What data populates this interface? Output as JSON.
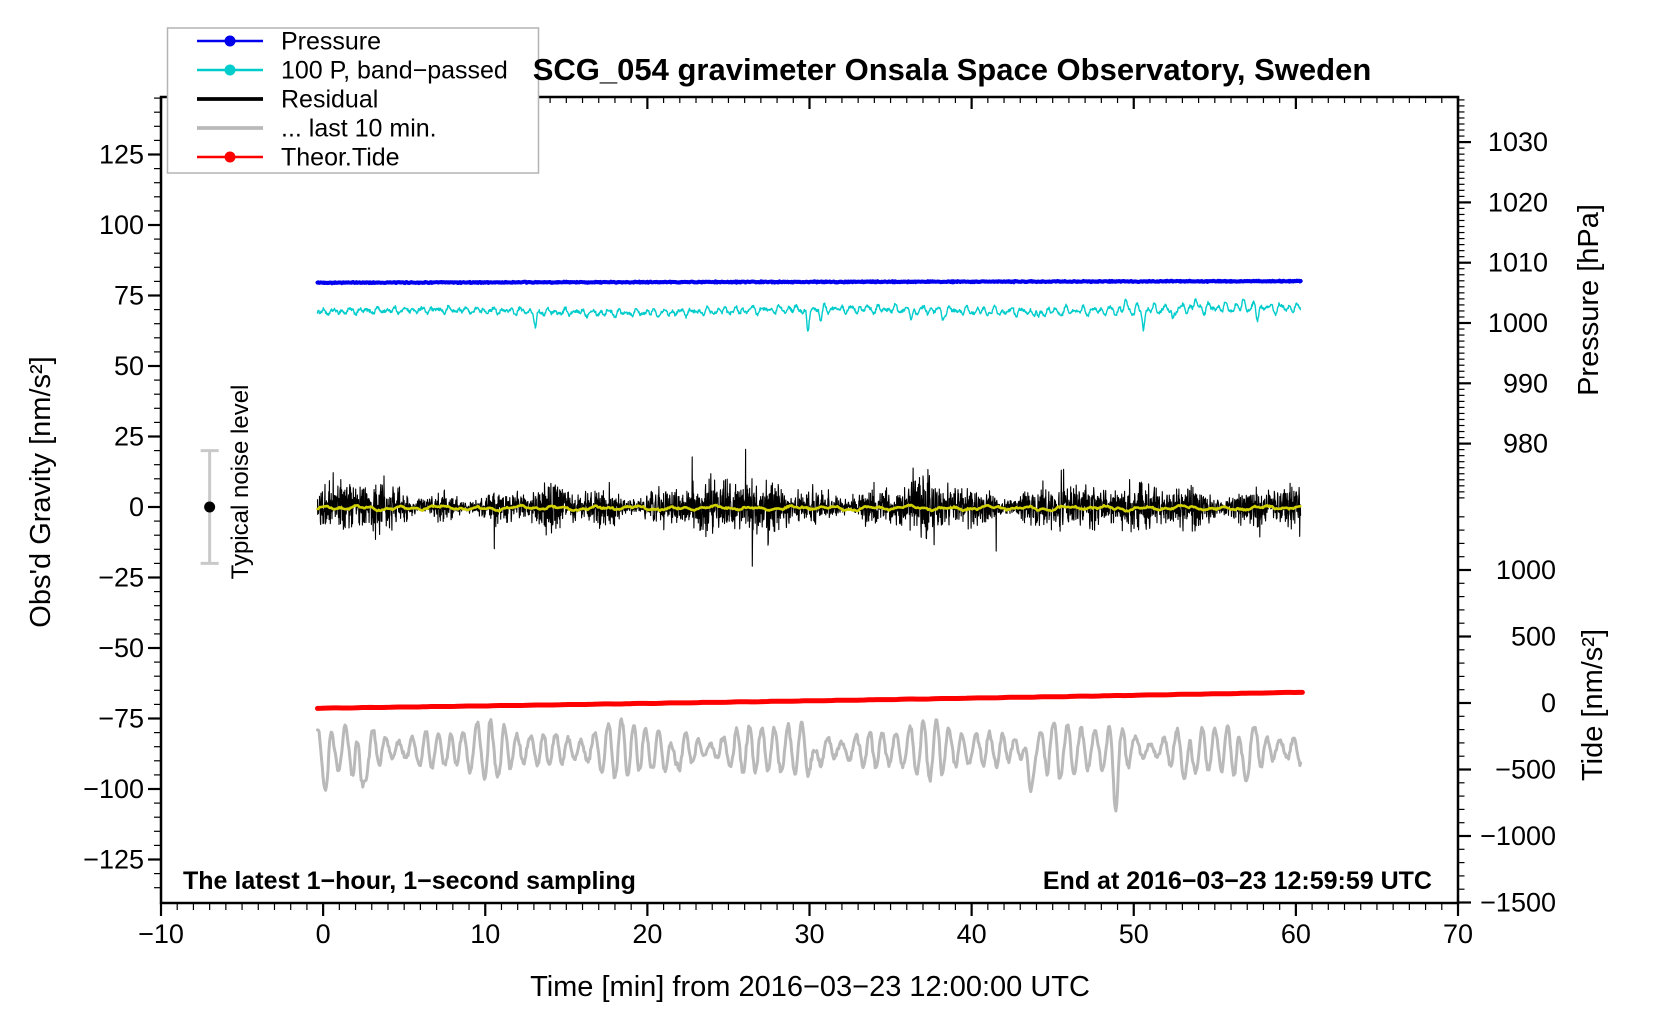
{
  "title": "SCG_054 gravimeter Onsala Space Observatory, Sweden",
  "annotations": {
    "sampling_note": "The latest 1−hour, 1−second sampling",
    "end_note": "End at 2016−03−23 12:59:59 UTC",
    "noise_label": "Typical noise level"
  },
  "axes": {
    "x": {
      "label": "Time [min] from 2016−03−23 12:00:00 UTC",
      "min": -10,
      "max": 70,
      "major_ticks": [
        -10,
        0,
        10,
        20,
        30,
        40,
        50,
        60,
        70
      ],
      "tick_labels": [
        "−10",
        "0",
        "10",
        "20",
        "30",
        "40",
        "50",
        "60",
        "70"
      ],
      "minor_step": 1
    },
    "y_left": {
      "label": "Obs'd Gravity [nm/s²]",
      "min": -140,
      "max": 145,
      "major_ticks": [
        -125,
        -100,
        -75,
        -50,
        -25,
        0,
        25,
        50,
        75,
        100,
        125
      ],
      "tick_labels": [
        "−125",
        "−100",
        "−75",
        "−50",
        "−25",
        "0",
        "25",
        "50",
        "75",
        "100",
        "125"
      ],
      "minor_step": 5
    },
    "y_right_pressure": {
      "label": "Pressure [hPa]",
      "min": 970.5,
      "max": 1037.5,
      "major_ticks": [
        980,
        990,
        1000,
        1010,
        1020,
        1030
      ],
      "tick_labels": [
        "980",
        "990",
        "1000",
        "1010",
        "1020",
        "1030"
      ],
      "minor_step": 1
    },
    "y_right_tide": {
      "label": "Tide [nm/s²]",
      "min": -1495,
      "max": 1495,
      "major_ticks": [
        -1500,
        -1000,
        -500,
        0,
        500,
        1000
      ],
      "tick_labels": [
        "−1500",
        "−1000",
        "−500",
        "0",
        "500",
        "1000"
      ],
      "minor_step": 100
    }
  },
  "legend": {
    "items": [
      {
        "label": "Pressure",
        "series": "pressure",
        "marker": true
      },
      {
        "label": "100 P, band−passed",
        "series": "bandpassed",
        "marker": true
      },
      {
        "label": "Residual",
        "series": "residual",
        "marker": false
      },
      {
        "label": "... last 10 min.",
        "series": "last10min",
        "marker": false
      },
      {
        "label": "Theor.Tide",
        "series": "tide",
        "marker": true
      }
    ]
  },
  "chart_data": {
    "type": "line",
    "title": "SCG_054 gravimeter Onsala Space Observatory, Sweden",
    "xlabel": "Time [min] from 2016−03−23 12:00:00 UTC",
    "x_data_range_min": [
      -0.35,
      60.3
    ],
    "grid": false,
    "series": [
      {
        "key": "pressure",
        "label": "Pressure",
        "color": "#0000ee",
        "width": 4,
        "axis": "pressure_hPa",
        "approx_value_hPa": 1006.7,
        "gravity_scale_start": 79.55,
        "gravity_scale_end": 80.1,
        "noise_sd": 0.18,
        "character": "nearly constant thick line"
      },
      {
        "key": "bandpassed",
        "label": "100 P, band−passed",
        "color": "#00cccc",
        "width": 1.4,
        "axis": "gravity",
        "mean_start": 69.2,
        "trend_per_min": 0.015,
        "typical_amplitude": 1.3,
        "amplitude_growth_per_min": 0.014,
        "range": [
          57,
          75
        ],
        "notable_dips": [
          [
            13.1,
            6
          ],
          [
            29.9,
            9
          ],
          [
            30.7,
            4
          ],
          [
            36.3,
            4
          ],
          [
            38.2,
            3.5
          ],
          [
            44.1,
            3.5
          ],
          [
            50.6,
            7
          ],
          [
            52.4,
            4
          ],
          [
            57.6,
            3
          ]
        ]
      },
      {
        "key": "residual",
        "label": "Residual",
        "color": "#000000",
        "width": 1.1,
        "axis": "gravity",
        "mean": 0,
        "typical_band": [
          -9,
          9
        ],
        "spike_range": [
          -21,
          21
        ],
        "burst_centers_min": [
          23,
          36.8,
          44.8
        ]
      },
      {
        "key": "residual_smoothed",
        "label": "(smoothed residual, unlabeled)",
        "color": "#d0d000",
        "width": 2.6,
        "axis": "gravity",
        "mean": -0.4,
        "band": [
          -1.8,
          1.2
        ],
        "note": "yellow low-passed residual drawn over black trace; not in legend"
      },
      {
        "key": "last10min",
        "label": "... last 10 min.",
        "color": "#b9b9b9",
        "width": 3,
        "axis": "gravity",
        "mean": -86,
        "oscillation_period_min": 0.82,
        "typical_amplitude": 8,
        "range": [
          -105,
          -74
        ],
        "notable_dips": [
          [
            0.2,
            9
          ],
          [
            2.35,
            17
          ],
          [
            21.6,
            7
          ],
          [
            30.3,
            8
          ],
          [
            43.6,
            15
          ],
          [
            48.9,
            14
          ],
          [
            53.3,
            9
          ],
          [
            56.7,
            11
          ]
        ]
      },
      {
        "key": "tide",
        "label": "Theor.Tide",
        "color": "#ff0000",
        "width": 5,
        "axis": "gravity",
        "start_value": -71.35,
        "end_value": -65.8,
        "slope_per_min": 0.0805,
        "curvature": 0.00022,
        "character": "thick, nearly straight, slowly rising"
      }
    ],
    "noise_bar": {
      "x_min": -7,
      "center_value": 0,
      "range": [
        -20,
        20
      ],
      "bar_color": "#c9c9c9",
      "dot_color": "#000000"
    }
  }
}
